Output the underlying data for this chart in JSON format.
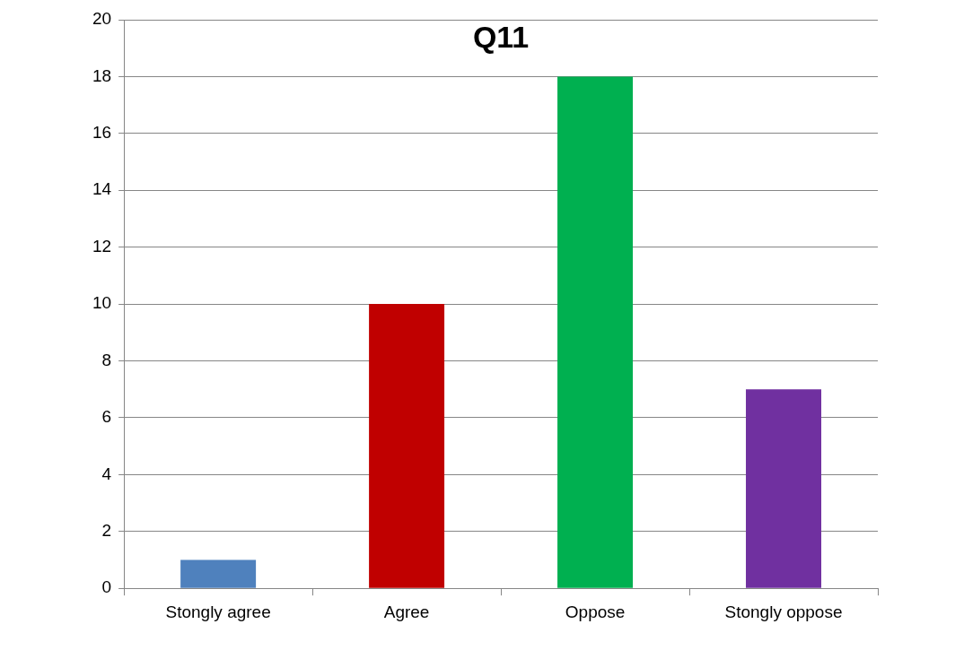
{
  "chart_data": {
    "type": "bar",
    "title": "Q11",
    "categories": [
      "Stongly agree",
      "Agree",
      "Oppose",
      "Stongly oppose"
    ],
    "values": [
      1,
      10,
      18,
      7
    ],
    "colors": [
      "#4f81bd",
      "#c00000",
      "#00b050",
      "#7030a0"
    ],
    "ylim": [
      0,
      20
    ],
    "yticks": [
      0,
      2,
      4,
      6,
      8,
      10,
      12,
      14,
      16,
      18,
      20
    ],
    "grid": "y",
    "legend": false
  }
}
